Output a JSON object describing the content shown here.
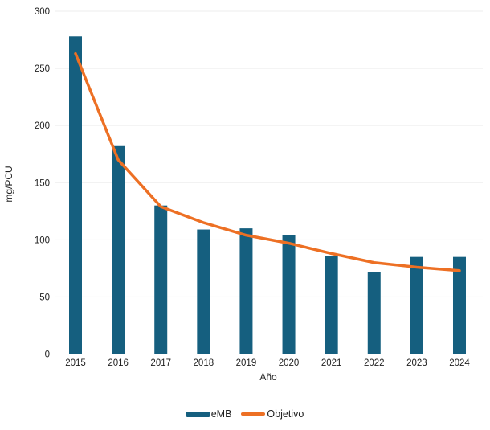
{
  "chart_data": {
    "type": "combo",
    "title": "",
    "xlabel": "Año",
    "ylabel": "mg/PCU",
    "categories": [
      "2015",
      "2016",
      "2017",
      "2018",
      "2019",
      "2020",
      "2021",
      "2022",
      "2023",
      "2024"
    ],
    "series": [
      {
        "name": "eMB",
        "type": "bar",
        "color": "#155F7F",
        "values": [
          278,
          182,
          130,
          109,
          110,
          104,
          86,
          72,
          85,
          85
        ]
      },
      {
        "name": "Objetivo",
        "type": "line",
        "color": "#ED7024",
        "values": [
          263,
          170,
          129,
          115,
          104,
          97,
          88,
          80,
          76,
          73
        ]
      }
    ],
    "ylim": [
      0,
      300
    ],
    "ytick_step": 50,
    "yticks": [
      "0",
      "50",
      "100",
      "150",
      "200",
      "250",
      "300"
    ],
    "grid": true,
    "gridline_color": "#EDEDED",
    "baseline_color": "#D8D8D8",
    "legend_position": "bottom"
  }
}
